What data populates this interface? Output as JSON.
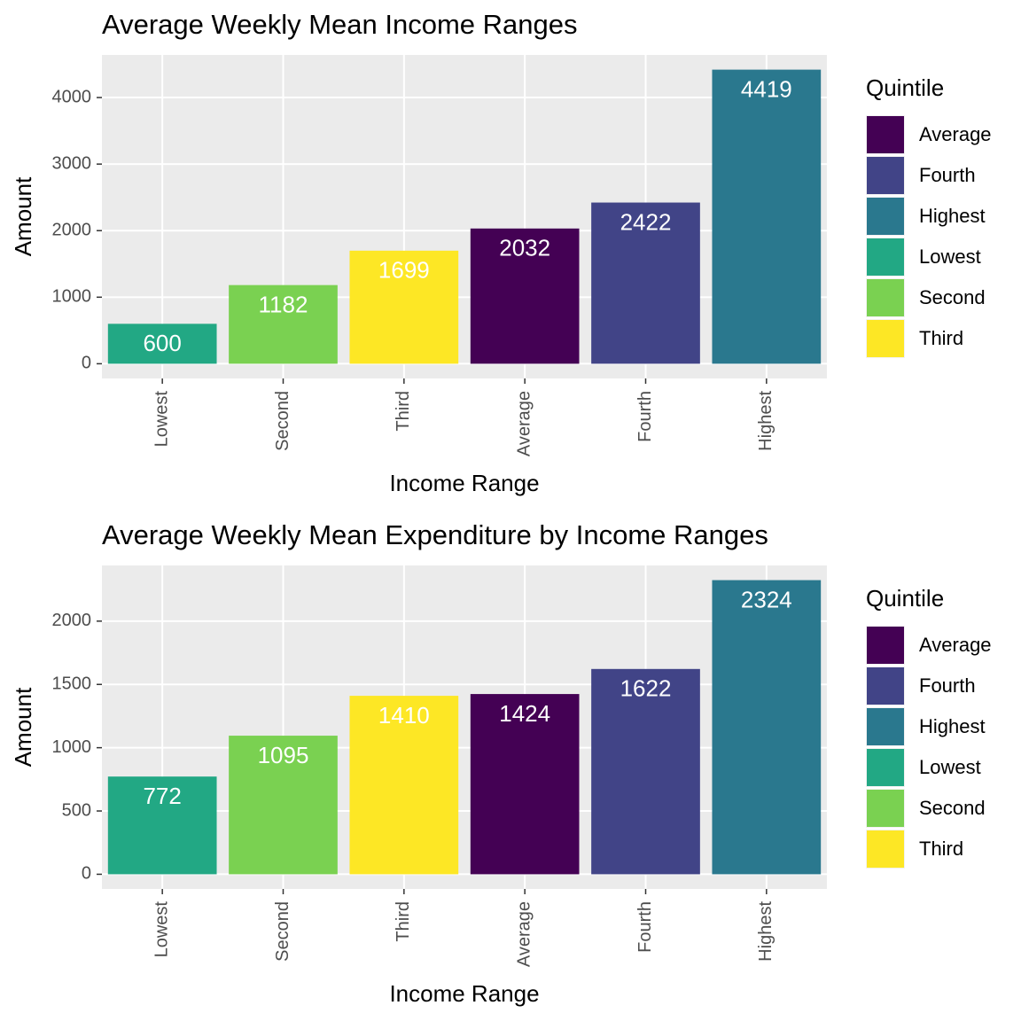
{
  "chart_data": [
    {
      "type": "bar",
      "title": "Average Weekly Mean Income Ranges",
      "x_label": "Income Range",
      "y_label": "Amount",
      "categories": [
        "Lowest",
        "Second",
        "Third",
        "Average",
        "Fourth",
        "Highest"
      ],
      "values": [
        600,
        1182,
        1699,
        2032,
        2422,
        4419
      ],
      "colors": [
        "#22A884",
        "#7AD151",
        "#FDE725",
        "#440154",
        "#414487",
        "#2A788E"
      ],
      "ylim": [
        -221,
        4640
      ],
      "yticks": [
        0,
        1000,
        2000,
        3000,
        4000
      ],
      "grid": true,
      "legend": {
        "title": "Quintile",
        "items": [
          {
            "name": "Average",
            "color": "#440154"
          },
          {
            "name": "Fourth",
            "color": "#414487"
          },
          {
            "name": "Highest",
            "color": "#2A788E"
          },
          {
            "name": "Lowest",
            "color": "#22A884"
          },
          {
            "name": "Second",
            "color": "#7AD151"
          },
          {
            "name": "Third",
            "color": "#FDE725"
          }
        ]
      }
    },
    {
      "type": "bar",
      "title": "Average Weekly Mean Expenditure by Income Ranges",
      "x_label": "Income Range",
      "y_label": "Amount",
      "categories": [
        "Lowest",
        "Second",
        "Third",
        "Average",
        "Fourth",
        "Highest"
      ],
      "values": [
        772,
        1095,
        1410,
        1424,
        1622,
        2324
      ],
      "colors": [
        "#22A884",
        "#7AD151",
        "#FDE725",
        "#440154",
        "#414487",
        "#2A788E"
      ],
      "ylim": [
        -116,
        2440
      ],
      "yticks": [
        0,
        500,
        1000,
        1500,
        2000
      ],
      "grid": true,
      "legend": {
        "title": "Quintile",
        "items": [
          {
            "name": "Average",
            "color": "#440154"
          },
          {
            "name": "Fourth",
            "color": "#414487"
          },
          {
            "name": "Highest",
            "color": "#2A788E"
          },
          {
            "name": "Lowest",
            "color": "#22A884"
          },
          {
            "name": "Second",
            "color": "#7AD151"
          },
          {
            "name": "Third",
            "color": "#FDE725"
          }
        ]
      }
    }
  ]
}
